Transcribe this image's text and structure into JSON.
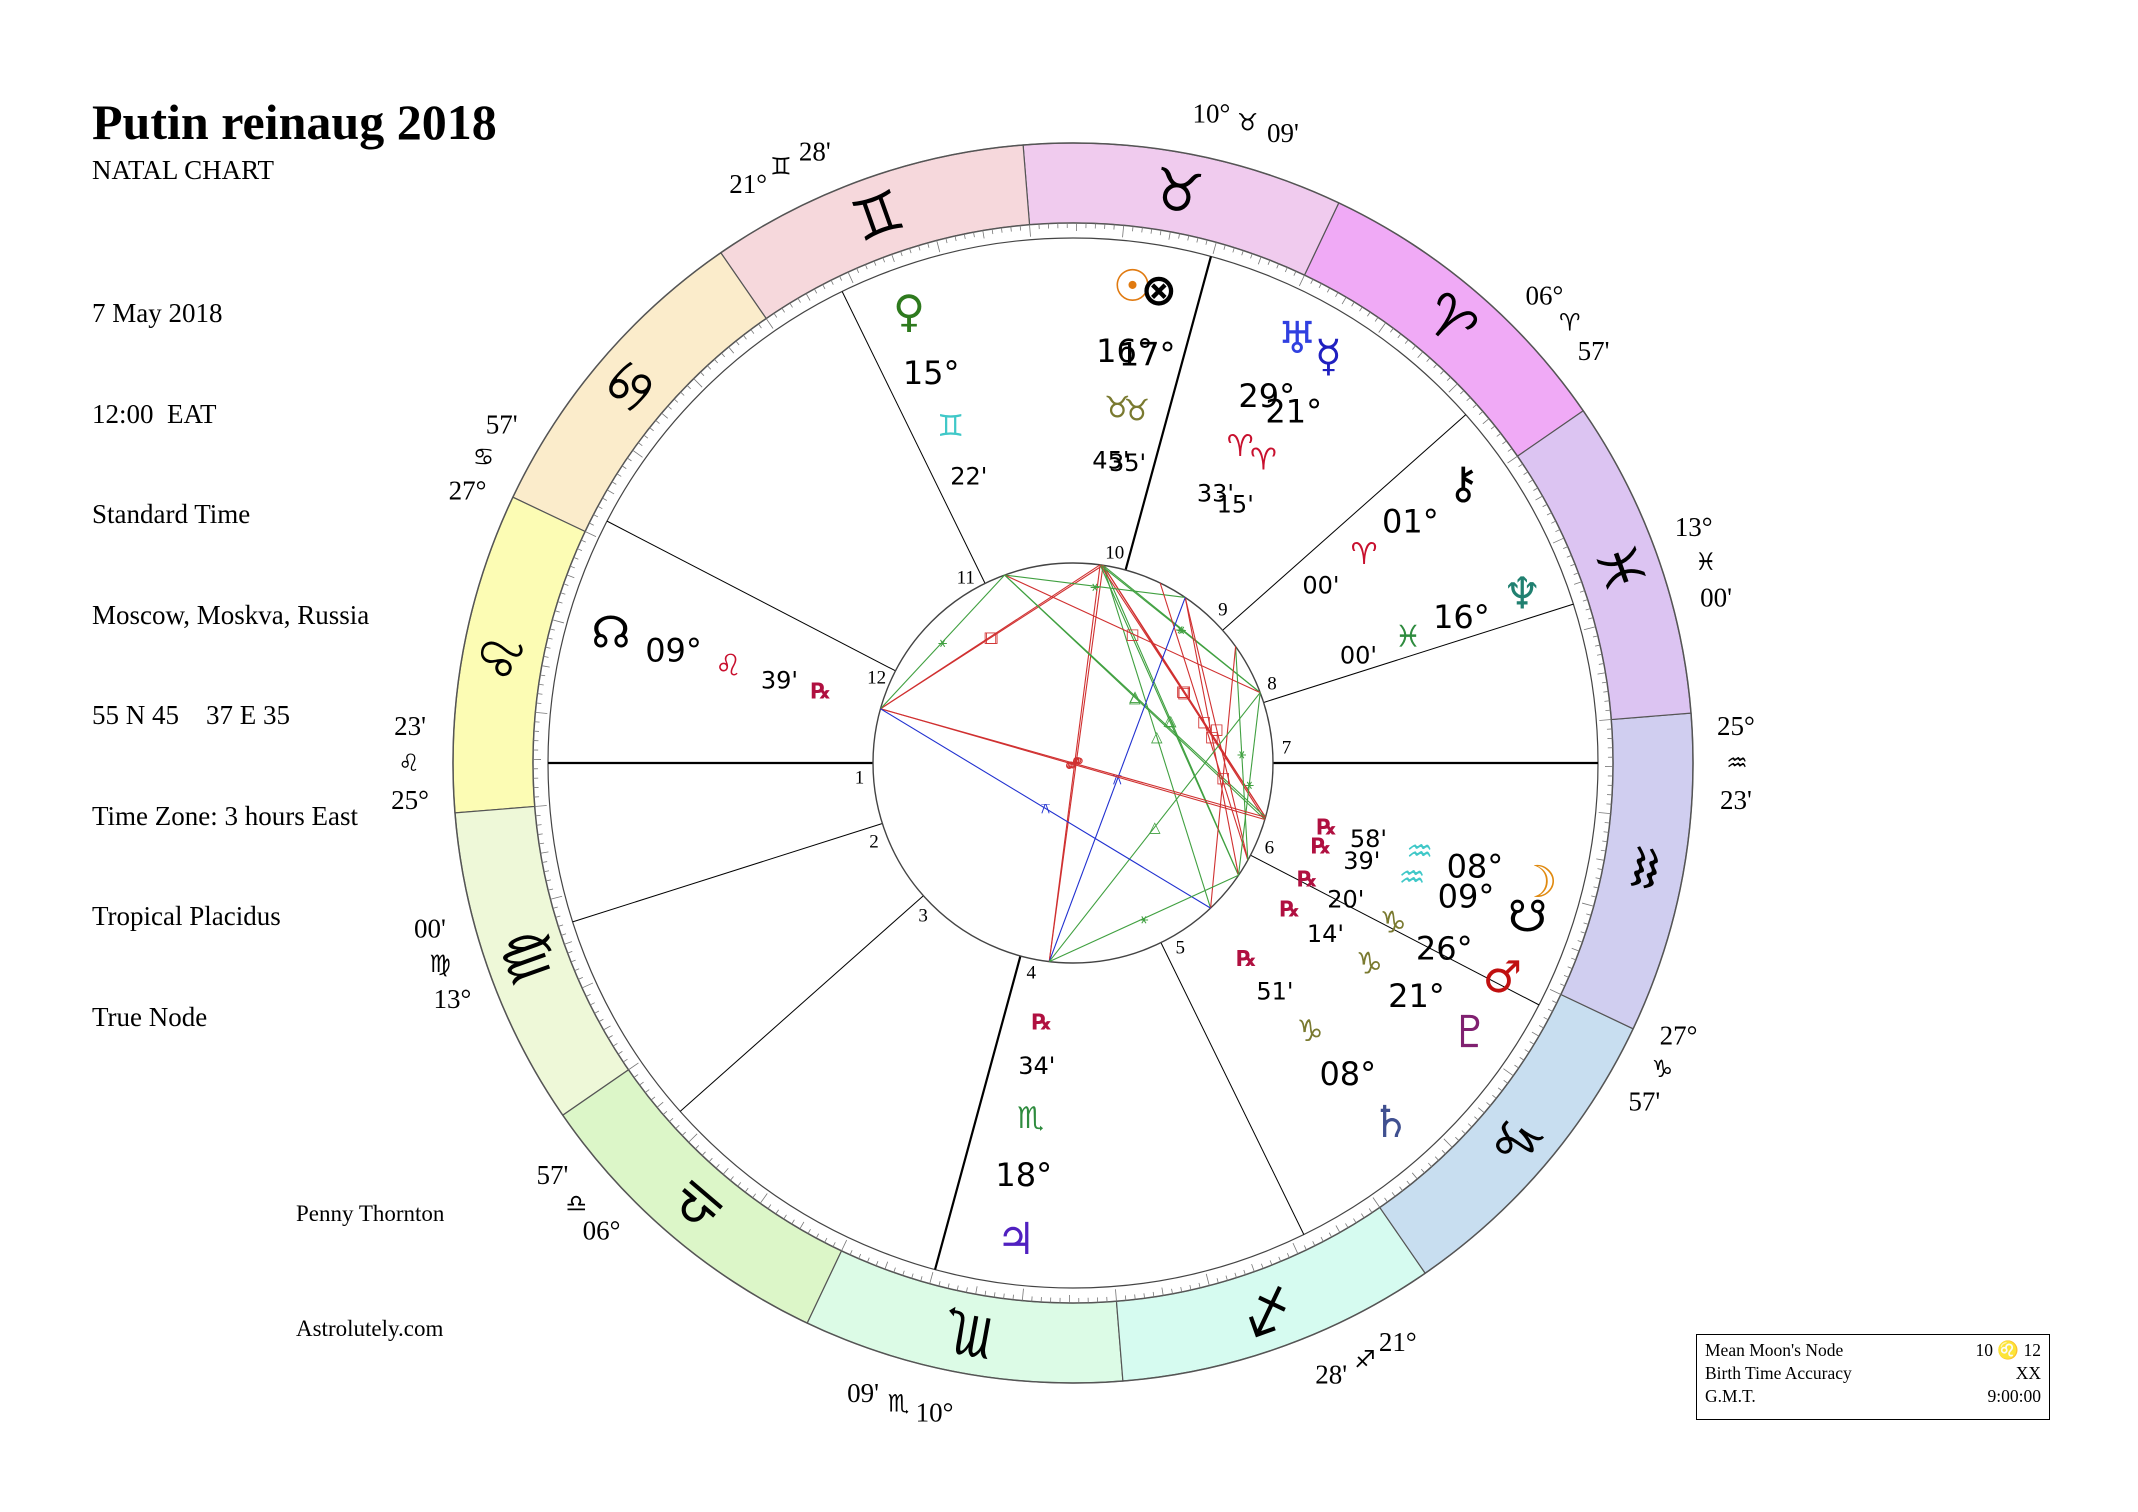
{
  "header": {
    "title": "Putin reinaug 2018",
    "subtitle": "NATAL CHART",
    "details": [
      "7 May 2018",
      "12:00  EAT",
      "Standard Time",
      "Moscow, Moskva, Russia",
      "55 N 45    37 E 35",
      "Time Zone: 3 hours East",
      "Tropical Placidus",
      "True Node"
    ]
  },
  "credits": {
    "author": "Penny Thornton",
    "site": "Astrolutely.com"
  },
  "info_box": [
    {
      "label": "Mean Moon's Node",
      "value": "10 ♌ 12"
    },
    {
      "label": "Birth Time Accuracy",
      "value": "XX"
    },
    {
      "label": "G.M.T.",
      "value": "9:00:00"
    }
  ],
  "colors": {
    "fire": "#c8102e",
    "earth": "#7a7a30",
    "air": "#40c8c8",
    "water": "#2e8b3e",
    "aspect_hard": "#d03030",
    "aspect_soft": "#40a040",
    "aspect_minor": "#2030d0"
  },
  "signs": [
    {
      "name": "Aries",
      "glyph": "♈",
      "color": "#f0aaf6"
    },
    {
      "name": "Taurus",
      "glyph": "♉",
      "color": "#f0cbee"
    },
    {
      "name": "Gemini",
      "glyph": "♊",
      "color": "#f6d8dc"
    },
    {
      "name": "Cancer",
      "glyph": "♋",
      "color": "#fbeccb"
    },
    {
      "name": "Leo",
      "glyph": "♌",
      "color": "#fcfcb4"
    },
    {
      "name": "Virgo",
      "glyph": "♍",
      "color": "#eef8d8"
    },
    {
      "name": "Libra",
      "glyph": "♎",
      "color": "#dcf6c8"
    },
    {
      "name": "Scorpio",
      "glyph": "♏",
      "color": "#dcfbe6"
    },
    {
      "name": "Sagittarius",
      "glyph": "♐",
      "color": "#d6fbf0"
    },
    {
      "name": "Capricorn",
      "glyph": "♑",
      "color": "#c8def0"
    },
    {
      "name": "Aquarius",
      "glyph": "♒",
      "color": "#d0cef0"
    },
    {
      "name": "Pisces",
      "glyph": "♓",
      "color": "#dcc4f2"
    }
  ],
  "house_cusps": [
    {
      "house": 1,
      "deg": "25°",
      "sign": "♌",
      "min": "23'"
    },
    {
      "house": 2,
      "deg": "13°",
      "sign": "♍",
      "min": "00'"
    },
    {
      "house": 3,
      "deg": "06°",
      "sign": "♎",
      "min": "57'"
    },
    {
      "house": 4,
      "deg": "10°",
      "sign": "♏",
      "min": "09'"
    },
    {
      "house": 5,
      "deg": "21°",
      "sign": "♐",
      "min": "28'"
    },
    {
      "house": 6,
      "deg": "27°",
      "sign": "♑",
      "min": "57'"
    },
    {
      "house": 7,
      "deg": "25°",
      "sign": "♒",
      "min": "23'"
    },
    {
      "house": 8,
      "deg": "13°",
      "sign": "♓",
      "min": "00'"
    },
    {
      "house": 9,
      "deg": "06°",
      "sign": "♈",
      "min": "57'"
    },
    {
      "house": 10,
      "deg": "10°",
      "sign": "♉",
      "min": "09'"
    },
    {
      "house": 11,
      "deg": "21°",
      "sign": "♊",
      "min": "28'"
    },
    {
      "house": 12,
      "deg": "27°",
      "sign": "♋",
      "min": "57'"
    }
  ],
  "planets": [
    {
      "name": "Sun",
      "glyph": "☉",
      "deg": "16°",
      "sign": "♉",
      "min": "45'",
      "retro": "",
      "color": "#e07a10"
    },
    {
      "name": "Part of Fortune",
      "glyph": "⊗",
      "deg": "17°",
      "sign": "♉",
      "min": "35'",
      "retro": "",
      "color": "#000000"
    },
    {
      "name": "Venus",
      "glyph": "♀",
      "deg": "15°",
      "sign": "♊",
      "min": "22'",
      "retro": "",
      "color": "#2e7a1e"
    },
    {
      "name": "Uranus",
      "glyph": "♅",
      "deg": "29°",
      "sign": "♈",
      "min": "33'",
      "retro": "",
      "color": "#3040e0"
    },
    {
      "name": "Mercury",
      "glyph": "☿",
      "deg": "21°",
      "sign": "♈",
      "min": "15'",
      "retro": "",
      "color": "#2020c0"
    },
    {
      "name": "Chiron",
      "glyph": "⚷",
      "deg": "01°",
      "sign": "♈",
      "min": "00'",
      "retro": "",
      "color": "#000000"
    },
    {
      "name": "Neptune",
      "glyph": "♆",
      "deg": "16°",
      "sign": "♓",
      "min": "00'",
      "retro": "",
      "color": "#208070"
    },
    {
      "name": "North Node",
      "glyph": "☊",
      "deg": "09°",
      "sign": "♌",
      "min": "39'",
      "retro": "℞",
      "color": "#000000"
    },
    {
      "name": "South Node",
      "glyph": "☋",
      "deg": "09°",
      "sign": "♒",
      "min": "39'",
      "retro": "℞",
      "color": "#000000"
    },
    {
      "name": "Moon",
      "glyph": "☽",
      "deg": "08°",
      "sign": "♒",
      "min": "58'",
      "retro": "℞",
      "color": "#e08a10"
    },
    {
      "name": "Mars",
      "glyph": "♂",
      "deg": "26°",
      "sign": "♑",
      "min": "20'",
      "retro": "℞",
      "color": "#c01010"
    },
    {
      "name": "Pluto",
      "glyph": "♇",
      "deg": "21°",
      "sign": "♑",
      "min": "14'",
      "retro": "℞",
      "color": "#802070"
    },
    {
      "name": "Saturn",
      "glyph": "♄",
      "deg": "08°",
      "sign": "♑",
      "min": "51'",
      "retro": "℞",
      "color": "#405090"
    },
    {
      "name": "Jupiter",
      "glyph": "♃",
      "deg": "18°",
      "sign": "♏",
      "min": "34'",
      "retro": "℞",
      "color": "#5020c0"
    }
  ]
}
